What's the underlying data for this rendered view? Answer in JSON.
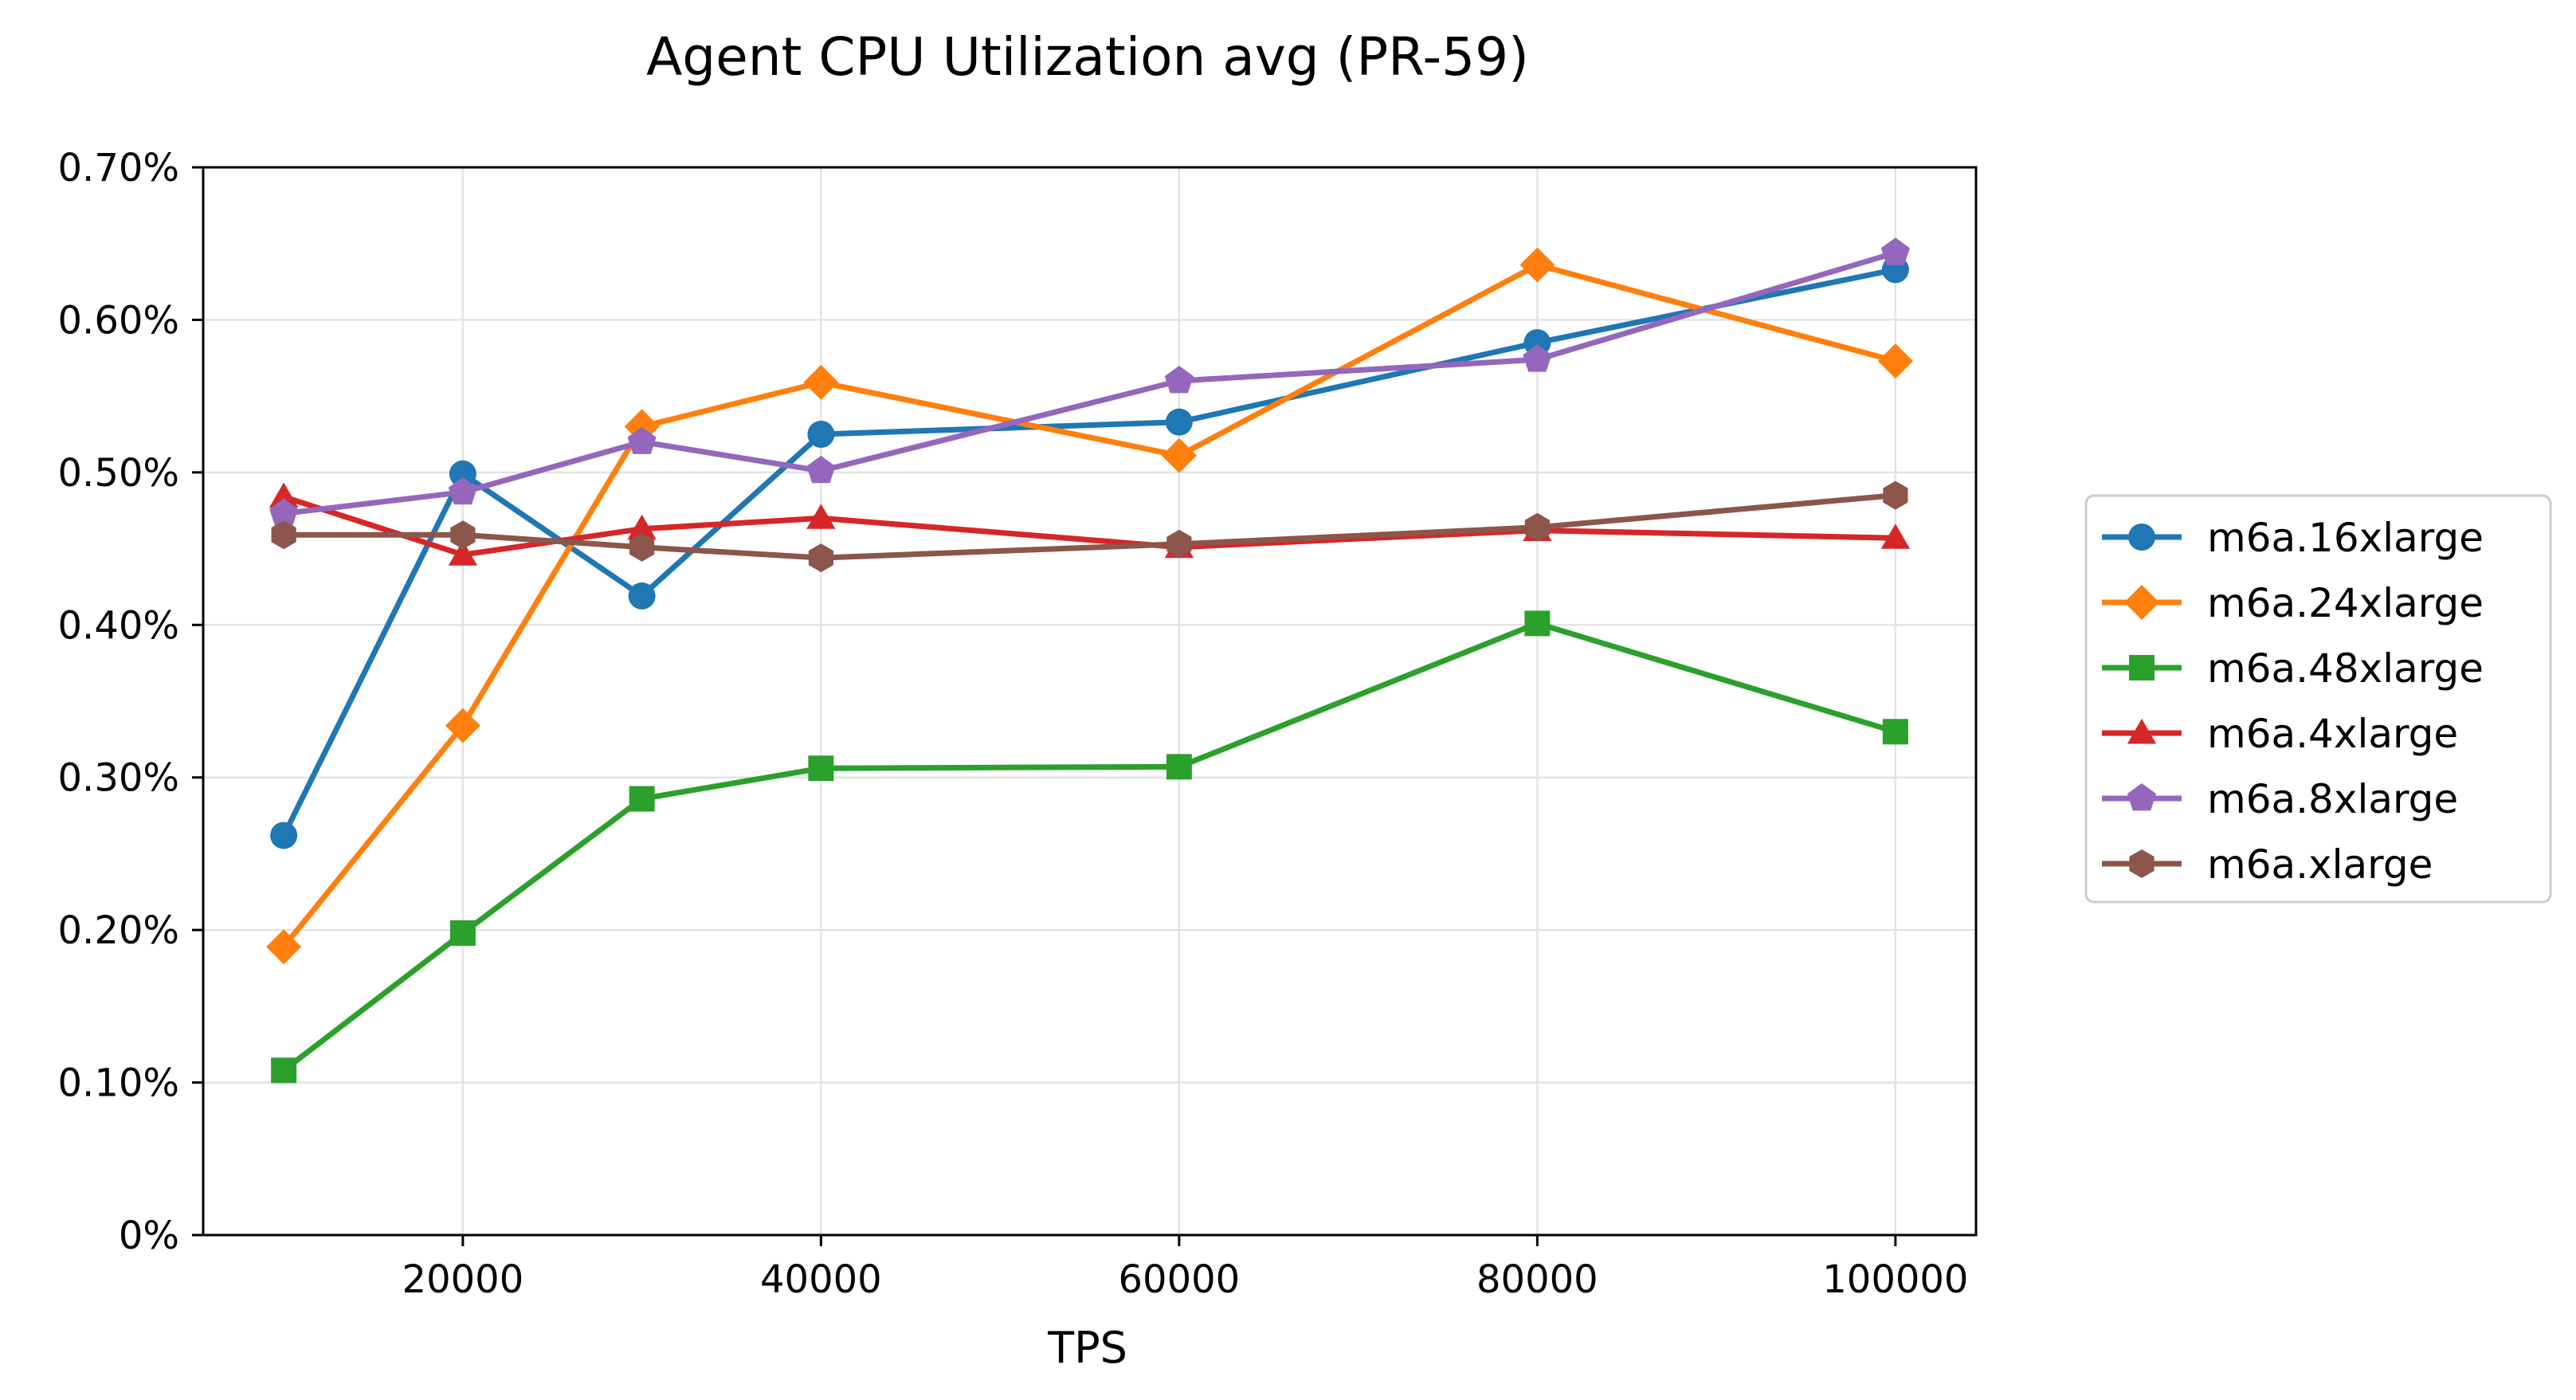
{
  "chart_data": {
    "type": "line",
    "title": "Agent CPU Utilization avg (PR-59)",
    "xlabel": "TPS",
    "ylabel": "",
    "xlim": [
      5500,
      104500
    ],
    "ylim": [
      0,
      0.007
    ],
    "grid": true,
    "legend_position": "right",
    "x_ticks": [
      20000,
      40000,
      60000,
      80000,
      100000
    ],
    "x_tick_labels": [
      "20000",
      "40000",
      "60000",
      "80000",
      "100000"
    ],
    "y_ticks": [
      0,
      0.001,
      0.002,
      0.003,
      0.004,
      0.005,
      0.006,
      0.007
    ],
    "y_tick_labels": [
      "0%",
      "0.10%",
      "0.20%",
      "0.30%",
      "0.40%",
      "0.50%",
      "0.60%",
      "0.70%"
    ],
    "x": [
      10000,
      20000,
      30000,
      40000,
      60000,
      80000,
      100000
    ],
    "series": [
      {
        "name": "m6a.16xlarge",
        "color": "#1f77b4",
        "marker": "circle",
        "values": [
          0.00262,
          0.00499,
          0.00419,
          0.00525,
          0.00533,
          0.00585,
          0.00633
        ]
      },
      {
        "name": "m6a.24xlarge",
        "color": "#ff7f0e",
        "marker": "diamond",
        "values": [
          0.00189,
          0.00334,
          0.0053,
          0.00559,
          0.00511,
          0.00636,
          0.00573
        ]
      },
      {
        "name": "m6a.48xlarge",
        "color": "#2ca02c",
        "marker": "square",
        "values": [
          0.00108,
          0.00198,
          0.00286,
          0.00306,
          0.00307,
          0.00401,
          0.0033
        ]
      },
      {
        "name": "m6a.4xlarge",
        "color": "#d62728",
        "marker": "triangle",
        "values": [
          0.00484,
          0.00446,
          0.00463,
          0.0047,
          0.00451,
          0.00462,
          0.00457
        ]
      },
      {
        "name": "m6a.8xlarge",
        "color": "#9467bd",
        "marker": "pentagon",
        "values": [
          0.00473,
          0.00487,
          0.0052,
          0.00501,
          0.0056,
          0.00574,
          0.00644
        ]
      },
      {
        "name": "m6a.xlarge",
        "color": "#8c564b",
        "marker": "hexagon",
        "values": [
          0.00459,
          0.00459,
          0.00451,
          0.00444,
          0.00453,
          0.00464,
          0.00485
        ]
      }
    ]
  }
}
